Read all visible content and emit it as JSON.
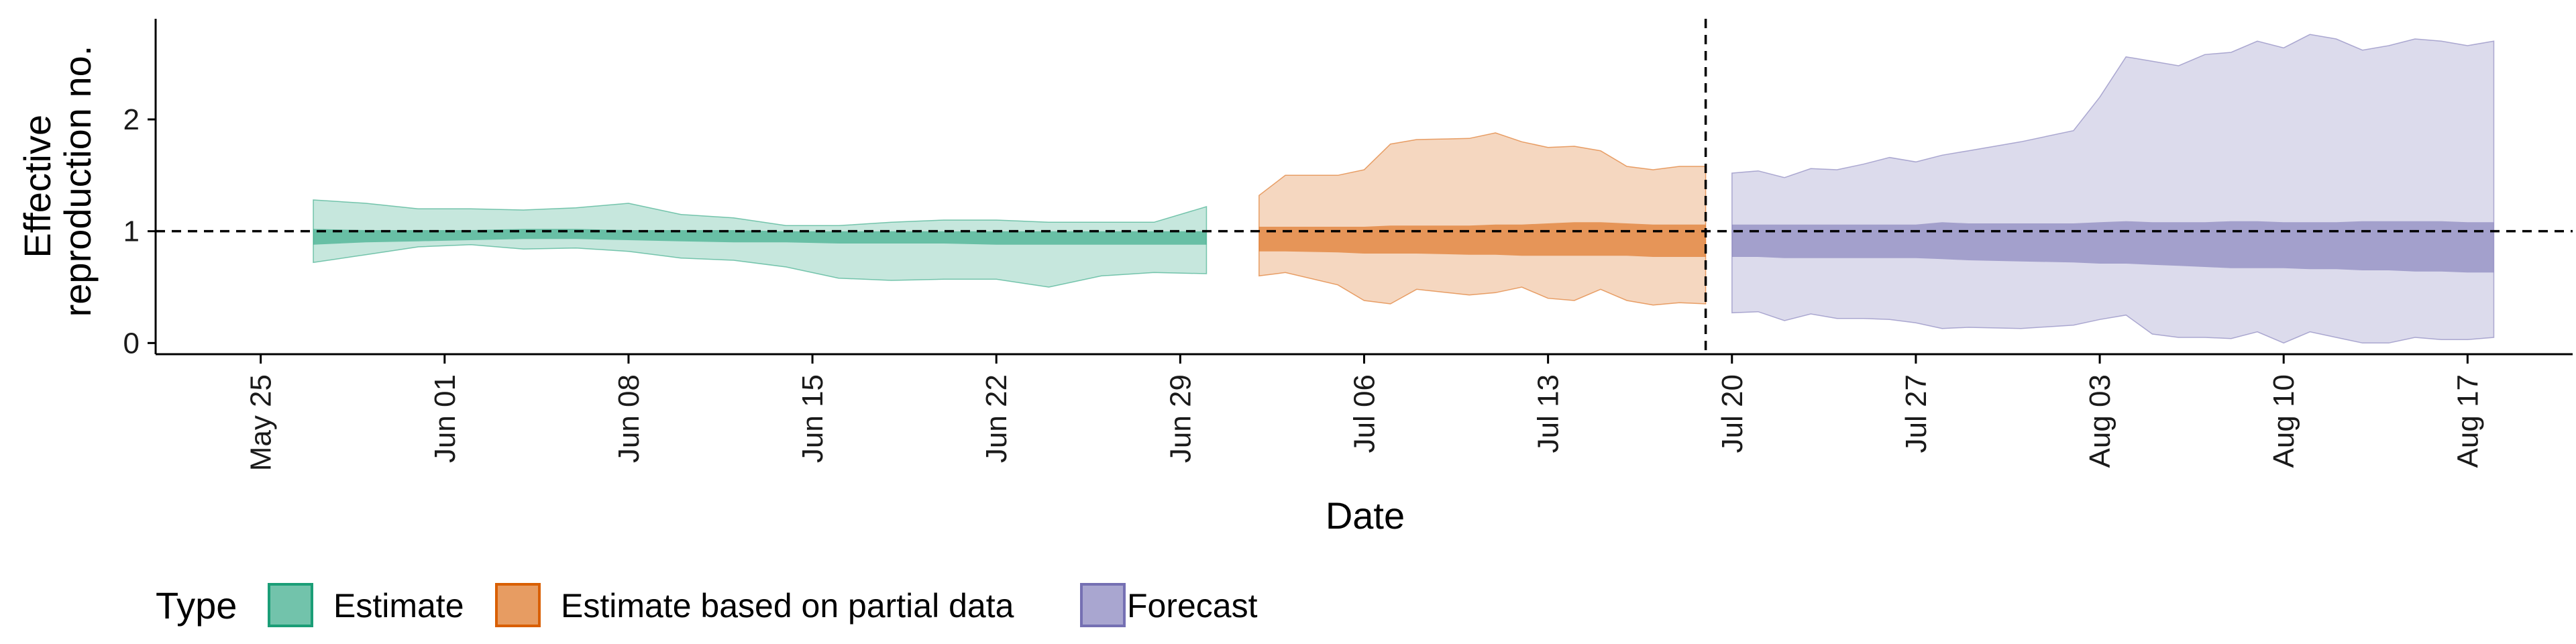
{
  "chart_data": {
    "type": "area",
    "xlabel": "Date",
    "ylabel": [
      "Effective",
      "reproduction no."
    ],
    "xlim": [
      "2020-05-21",
      "2020-08-21"
    ],
    "ylim": [
      -0.1,
      2.9
    ],
    "y_ticks": [
      0,
      1,
      2
    ],
    "x_ticks": [
      {
        "date": "2020-05-25",
        "label": "May 25"
      },
      {
        "date": "2020-06-01",
        "label": "Jun 01"
      },
      {
        "date": "2020-06-08",
        "label": "Jun 08"
      },
      {
        "date": "2020-06-15",
        "label": "Jun 15"
      },
      {
        "date": "2020-06-22",
        "label": "Jun 22"
      },
      {
        "date": "2020-06-29",
        "label": "Jun 29"
      },
      {
        "date": "2020-07-06",
        "label": "Jul 06"
      },
      {
        "date": "2020-07-13",
        "label": "Jul 13"
      },
      {
        "date": "2020-07-20",
        "label": "Jul 20"
      },
      {
        "date": "2020-07-27",
        "label": "Jul 27"
      },
      {
        "date": "2020-08-03",
        "label": "Aug 03"
      },
      {
        "date": "2020-08-10",
        "label": "Aug 10"
      },
      {
        "date": "2020-08-17",
        "label": "Aug 17"
      }
    ],
    "hline": 1,
    "vline": "2020-07-19",
    "series": [
      {
        "name": "Estimate",
        "color": "#1b9e77",
        "dates": [
          "2020-05-27",
          "2020-05-29",
          "2020-05-31",
          "2020-06-02",
          "2020-06-04",
          "2020-06-06",
          "2020-06-08",
          "2020-06-10",
          "2020-06-12",
          "2020-06-14",
          "2020-06-16",
          "2020-06-18",
          "2020-06-20",
          "2020-06-22",
          "2020-06-24",
          "2020-06-26",
          "2020-06-28",
          "2020-06-30"
        ],
        "outer_lower": [
          0.72,
          0.79,
          0.86,
          0.88,
          0.84,
          0.85,
          0.82,
          0.76,
          0.74,
          0.68,
          0.58,
          0.56,
          0.57,
          0.57,
          0.5,
          0.6,
          0.63,
          0.62
        ],
        "outer_upper": [
          1.28,
          1.25,
          1.2,
          1.2,
          1.19,
          1.21,
          1.25,
          1.15,
          1.12,
          1.05,
          1.05,
          1.08,
          1.1,
          1.1,
          1.08,
          1.08,
          1.08,
          1.22
        ],
        "inner_lower": [
          0.88,
          0.9,
          0.91,
          0.92,
          0.93,
          0.93,
          0.92,
          0.91,
          0.9,
          0.9,
          0.89,
          0.89,
          0.89,
          0.88,
          0.88,
          0.88,
          0.88,
          0.88
        ],
        "inner_upper": [
          1.02,
          1.01,
          1.01,
          1.01,
          1.02,
          1.02,
          1.01,
          1.01,
          1.01,
          1.0,
          1.0,
          1.0,
          1.0,
          1.0,
          1.0,
          1.0,
          1.0,
          1.0
        ]
      },
      {
        "name": "Estimate based on partial data",
        "color": "#d95f02",
        "dates": [
          "2020-07-02",
          "2020-07-03",
          "2020-07-05",
          "2020-07-06",
          "2020-07-07",
          "2020-07-08",
          "2020-07-10",
          "2020-07-11",
          "2020-07-12",
          "2020-07-13",
          "2020-07-14",
          "2020-07-15",
          "2020-07-16",
          "2020-07-17",
          "2020-07-18",
          "2020-07-19"
        ],
        "outer_lower": [
          0.6,
          0.63,
          0.52,
          0.38,
          0.35,
          0.48,
          0.43,
          0.45,
          0.5,
          0.4,
          0.38,
          0.48,
          0.38,
          0.34,
          0.36,
          0.35
        ],
        "outer_upper": [
          1.32,
          1.5,
          1.5,
          1.55,
          1.78,
          1.82,
          1.83,
          1.88,
          1.8,
          1.75,
          1.76,
          1.72,
          1.58,
          1.55,
          1.58,
          1.58
        ],
        "inner_lower": [
          0.82,
          0.82,
          0.81,
          0.8,
          0.8,
          0.8,
          0.79,
          0.79,
          0.78,
          0.78,
          0.78,
          0.78,
          0.78,
          0.77,
          0.77,
          0.77
        ],
        "inner_upper": [
          1.04,
          1.04,
          1.04,
          1.04,
          1.05,
          1.05,
          1.05,
          1.06,
          1.06,
          1.07,
          1.08,
          1.08,
          1.07,
          1.06,
          1.06,
          1.06
        ]
      },
      {
        "name": "Forecast",
        "color": "#7570b3",
        "dates": [
          "2020-07-20",
          "2020-07-21",
          "2020-07-22",
          "2020-07-23",
          "2020-07-24",
          "2020-07-25",
          "2020-07-26",
          "2020-07-27",
          "2020-07-28",
          "2020-07-29",
          "2020-07-31",
          "2020-08-02",
          "2020-08-03",
          "2020-08-04",
          "2020-08-05",
          "2020-08-06",
          "2020-08-07",
          "2020-08-08",
          "2020-08-09",
          "2020-08-10",
          "2020-08-11",
          "2020-08-12",
          "2020-08-13",
          "2020-08-14",
          "2020-08-15",
          "2020-08-16",
          "2020-08-17",
          "2020-08-18"
        ],
        "outer_lower": [
          0.27,
          0.28,
          0.2,
          0.26,
          0.22,
          0.22,
          0.21,
          0.18,
          0.13,
          0.14,
          0.13,
          0.16,
          0.21,
          0.25,
          0.08,
          0.05,
          0.05,
          0.04,
          0.1,
          0.0,
          0.1,
          0.05,
          0.0,
          0.0,
          0.05,
          0.03,
          0.03,
          0.05
        ],
        "outer_upper": [
          1.52,
          1.54,
          1.48,
          1.56,
          1.55,
          1.6,
          1.66,
          1.62,
          1.68,
          1.72,
          1.8,
          1.9,
          2.2,
          2.56,
          2.52,
          2.48,
          2.58,
          2.6,
          2.7,
          2.64,
          2.76,
          2.72,
          2.62,
          2.66,
          2.72,
          2.7,
          2.66,
          2.7
        ],
        "inner_lower": [
          0.77,
          0.77,
          0.76,
          0.76,
          0.76,
          0.76,
          0.76,
          0.76,
          0.75,
          0.74,
          0.73,
          0.72,
          0.71,
          0.71,
          0.7,
          0.69,
          0.68,
          0.67,
          0.67,
          0.67,
          0.66,
          0.66,
          0.65,
          0.65,
          0.64,
          0.64,
          0.63,
          0.63
        ],
        "inner_upper": [
          1.06,
          1.06,
          1.06,
          1.06,
          1.06,
          1.06,
          1.06,
          1.06,
          1.08,
          1.07,
          1.07,
          1.07,
          1.08,
          1.09,
          1.08,
          1.08,
          1.08,
          1.09,
          1.09,
          1.08,
          1.08,
          1.08,
          1.09,
          1.09,
          1.09,
          1.09,
          1.08,
          1.08
        ]
      }
    ],
    "legend": {
      "title": "Type",
      "position": "bottom-left",
      "items": [
        "Estimate",
        "Estimate based on partial data",
        "Forecast"
      ]
    }
  }
}
